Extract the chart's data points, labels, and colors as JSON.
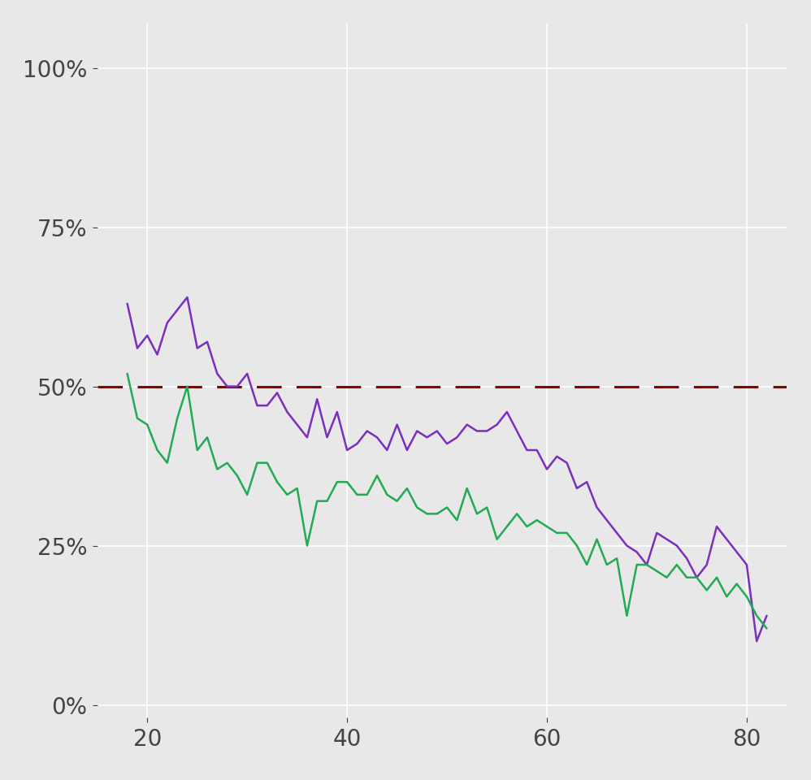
{
  "background_color": "#e8e8e8",
  "grid_color": "#ffffff",
  "dashed_line_y": 0.5,
  "dashed_line_color": "#8b0000",
  "female_color": "#7b2fbe",
  "male_color": "#22aa55",
  "xlim": [
    15,
    84
  ],
  "ylim": [
    -0.02,
    1.07
  ],
  "xticks": [
    20,
    40,
    60,
    80
  ],
  "yticks": [
    0.0,
    0.25,
    0.5,
    0.75,
    1.0
  ],
  "tick_labelsize": 20,
  "female_x": [
    18,
    19,
    20,
    21,
    22,
    23,
    24,
    25,
    26,
    27,
    28,
    29,
    30,
    31,
    32,
    33,
    34,
    35,
    36,
    37,
    38,
    39,
    40,
    41,
    42,
    43,
    44,
    45,
    46,
    47,
    48,
    49,
    50,
    51,
    52,
    53,
    54,
    55,
    56,
    57,
    58,
    59,
    60,
    61,
    62,
    63,
    64,
    65,
    66,
    67,
    68,
    69,
    70,
    71,
    72,
    73,
    74,
    75,
    76,
    77,
    78,
    79,
    80,
    81,
    82
  ],
  "female_y": [
    0.63,
    0.56,
    0.58,
    0.55,
    0.6,
    0.62,
    0.64,
    0.56,
    0.57,
    0.52,
    0.5,
    0.5,
    0.52,
    0.47,
    0.47,
    0.49,
    0.46,
    0.44,
    0.42,
    0.48,
    0.42,
    0.46,
    0.4,
    0.41,
    0.43,
    0.42,
    0.4,
    0.44,
    0.4,
    0.43,
    0.42,
    0.43,
    0.41,
    0.42,
    0.44,
    0.43,
    0.43,
    0.44,
    0.46,
    0.43,
    0.4,
    0.4,
    0.37,
    0.39,
    0.38,
    0.34,
    0.35,
    0.31,
    0.29,
    0.27,
    0.25,
    0.24,
    0.22,
    0.27,
    0.26,
    0.25,
    0.23,
    0.2,
    0.22,
    0.28,
    0.26,
    0.24,
    0.22,
    0.1,
    0.14
  ],
  "male_x": [
    18,
    19,
    20,
    21,
    22,
    23,
    24,
    25,
    26,
    27,
    28,
    29,
    30,
    31,
    32,
    33,
    34,
    35,
    36,
    37,
    38,
    39,
    40,
    41,
    42,
    43,
    44,
    45,
    46,
    47,
    48,
    49,
    50,
    51,
    52,
    53,
    54,
    55,
    56,
    57,
    58,
    59,
    60,
    61,
    62,
    63,
    64,
    65,
    66,
    67,
    68,
    69,
    70,
    71,
    72,
    73,
    74,
    75,
    76,
    77,
    78,
    79,
    80,
    81,
    82
  ],
  "male_y": [
    0.52,
    0.45,
    0.44,
    0.4,
    0.38,
    0.45,
    0.5,
    0.4,
    0.42,
    0.37,
    0.38,
    0.36,
    0.33,
    0.38,
    0.38,
    0.35,
    0.33,
    0.34,
    0.25,
    0.32,
    0.32,
    0.35,
    0.35,
    0.33,
    0.33,
    0.36,
    0.33,
    0.32,
    0.34,
    0.31,
    0.3,
    0.3,
    0.31,
    0.29,
    0.34,
    0.3,
    0.31,
    0.26,
    0.28,
    0.3,
    0.28,
    0.29,
    0.28,
    0.27,
    0.27,
    0.25,
    0.22,
    0.26,
    0.22,
    0.23,
    0.14,
    0.22,
    0.22,
    0.21,
    0.2,
    0.22,
    0.2,
    0.2,
    0.18,
    0.2,
    0.17,
    0.19,
    0.17,
    0.14,
    0.12
  ]
}
